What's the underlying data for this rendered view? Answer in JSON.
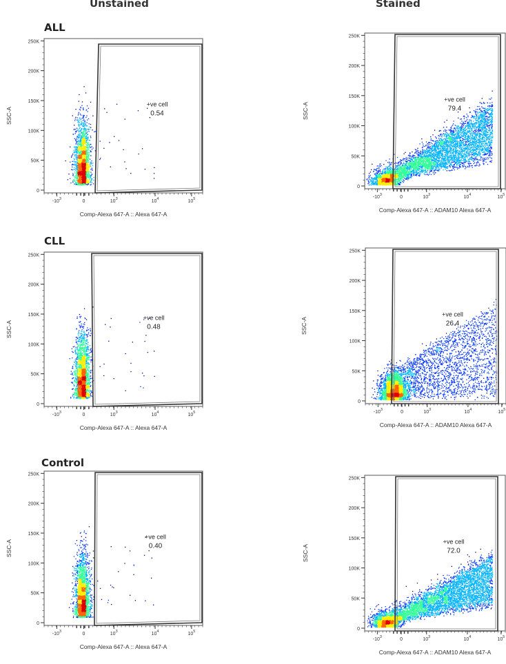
{
  "headers": {
    "unstained": "Unstained",
    "stained": "Stained"
  },
  "groups": [
    {
      "label": "ALL"
    },
    {
      "label": "CLL"
    },
    {
      "label": "Control"
    }
  ],
  "colors": {
    "density": [
      "#00007f",
      "#0033ff",
      "#00b3ff",
      "#33ff99",
      "#ffee00",
      "#ff6600",
      "#dd0000"
    ]
  },
  "chart_data": [
    {
      "type": "scatter",
      "panel": "ALL-unstained",
      "xlabel": "Comp-Alexa 647-A :: Alexa 647-A",
      "ylabel": "SSC-A",
      "x_scale": "biexponential",
      "x_ticks": [
        "-10^3",
        "0",
        "10^3",
        "10^4",
        "10^5"
      ],
      "y_ticks": [
        "0",
        "50K",
        "100K",
        "150K",
        "200K",
        "250K"
      ],
      "ylim": [
        0,
        262144
      ],
      "gate": {
        "name": "+ve cell",
        "value": "0.54"
      }
    },
    {
      "type": "scatter",
      "panel": "ALL-stained",
      "xlabel": "Comp-Alexa 647-A :: ADAM10 Alexa 647-A",
      "ylabel": "SSC-A",
      "x_scale": "biexponential",
      "x_ticks": [
        "-10^3",
        "0",
        "10^3",
        "10^4",
        "10^5"
      ],
      "y_ticks": [
        "0",
        "50K",
        "100K",
        "150K",
        "200K",
        "250K"
      ],
      "ylim": [
        0,
        262144
      ],
      "gate": {
        "name": "+ve cell",
        "value": "79.4"
      }
    },
    {
      "type": "scatter",
      "panel": "CLL-unstained",
      "xlabel": "Comp-Alexa 647-A :: Alexa 647-A",
      "ylabel": "SSC-A",
      "x_scale": "biexponential",
      "x_ticks": [
        "-10^3",
        "0",
        "10^3",
        "10^4",
        "10^5"
      ],
      "y_ticks": [
        "0",
        "50K",
        "100K",
        "150K",
        "200K",
        "250K"
      ],
      "ylim": [
        0,
        262144
      ],
      "gate": {
        "name": "+ve cell",
        "value": "0.48"
      }
    },
    {
      "type": "scatter",
      "panel": "CLL-stained",
      "xlabel": "Comp-Alexa 647-A :: ADAM10 Alexa 647-A",
      "ylabel": "SSC-A",
      "x_scale": "biexponential",
      "x_ticks": [
        "-10^3",
        "0",
        "10^3",
        "10^4",
        "10^5"
      ],
      "y_ticks": [
        "0",
        "50K",
        "100K",
        "150K",
        "200K",
        "250K"
      ],
      "ylim": [
        0,
        262144
      ],
      "gate": {
        "name": "+ve cell",
        "value": "26.4"
      }
    },
    {
      "type": "scatter",
      "panel": "Control-unstained",
      "xlabel": "Comp-Alexa 647-A :: Alexa 647-A",
      "ylabel": "SSC-A",
      "x_scale": "biexponential",
      "x_ticks": [
        "-10^3",
        "0",
        "10^3",
        "10^4",
        "10^5"
      ],
      "y_ticks": [
        "0",
        "50K",
        "100K",
        "150K",
        "200K",
        "250K"
      ],
      "ylim": [
        0,
        262144
      ],
      "gate": {
        "name": "+ve cell",
        "value": "0.40"
      }
    },
    {
      "type": "scatter",
      "panel": "Control-stained",
      "xlabel": "Comp-Alexa 647-A :: ADAM10 Alexa 647-A",
      "ylabel": "SSC-A",
      "x_scale": "biexponential",
      "x_ticks": [
        "-10^3",
        "0",
        "10^3",
        "10^4",
        "10^5"
      ],
      "y_ticks": [
        "0",
        "50K",
        "100K",
        "150K",
        "200K",
        "250K"
      ],
      "ylim": [
        0,
        262144
      ],
      "gate": {
        "name": "+ve cell",
        "value": "72.0"
      }
    }
  ]
}
